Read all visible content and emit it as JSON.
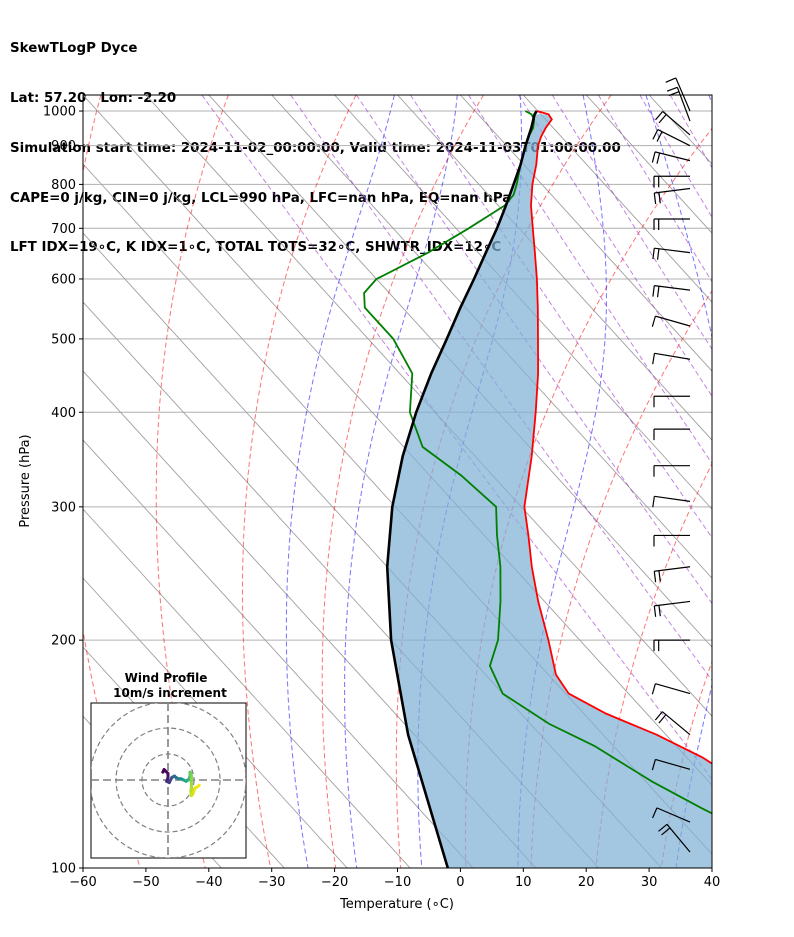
{
  "header": {
    "lines": [
      "SkewTLogP Dyce",
      "Lat: 57.20   Lon: -2.20",
      "Simulation start time: 2024-11-02_00:00:00, Valid time: 2024-11-03T01:00:00.00",
      "CAPE=0 j/kg, CIN=0 j/kg, LCL=990 hPa, LFC=nan hPa, EQ=nan hPa",
      "LFT IDX=19∘C, K IDX=1∘C, TOTAL TOTS=32∘C, SHWTR_IDX=12∘C"
    ]
  },
  "hodograph": {
    "title_line1": "Wind Profile",
    "title_line2": "10m/s increment",
    "rings": [
      10,
      20,
      30
    ],
    "trace": [
      [
        -6,
        3
      ],
      [
        -5.5,
        4
      ],
      [
        -5,
        3.5
      ],
      [
        -4,
        2.5
      ],
      [
        -4,
        1
      ],
      [
        -4.5,
        -0.5
      ],
      [
        -3.5,
        -1
      ],
      [
        -3,
        0
      ],
      [
        -2.5,
        1
      ],
      [
        -1.5,
        1.5
      ],
      [
        -1,
        1
      ],
      [
        0,
        0.5
      ],
      [
        1,
        0.5
      ],
      [
        2,
        0
      ],
      [
        3,
        -0.5
      ],
      [
        3.5,
        0
      ],
      [
        4,
        0
      ],
      [
        4.3,
        1
      ],
      [
        4.5,
        2
      ],
      [
        4.5,
        3
      ],
      [
        4.8,
        2.5
      ],
      [
        5,
        1.5
      ],
      [
        5,
        0
      ],
      [
        5,
        -1.5
      ],
      [
        5,
        -3
      ],
      [
        4.8,
        -4
      ],
      [
        4.8,
        -5
      ],
      [
        5,
        -6
      ],
      [
        5.5,
        -5.5
      ],
      [
        6,
        -4
      ],
      [
        6.5,
        -3
      ],
      [
        7.5,
        -2.5
      ],
      [
        8,
        -2
      ]
    ],
    "colors": [
      "#440154",
      "#440154",
      "#46085c",
      "#471063",
      "#48186a",
      "#472d7b",
      "#443983",
      "#3e4a89",
      "#37598c",
      "#31688e",
      "#2c728e",
      "#26828e",
      "#21918c",
      "#1fa188",
      "#22a884",
      "#2ab07f",
      "#35b779",
      "#44bf70",
      "#52c569",
      "#5ec962",
      "#70cf57",
      "#84d44b",
      "#90d743",
      "#9fda3a",
      "#aadc32",
      "#b5de2b",
      "#c0df25",
      "#cde11d",
      "#d8e219",
      "#e2e418",
      "#ece51b",
      "#f4e61e",
      "#fde725"
    ]
  },
  "chart_data": {
    "type": "line",
    "chart": "skewT-logP",
    "xlabel": "Temperature (∘C)",
    "ylabel": "Pressure (hPa)",
    "xlim": [
      -60,
      40
    ],
    "ylim": [
      1050,
      100
    ],
    "y_scale": "log",
    "grid": true,
    "xticks": [
      -60,
      -50,
      -40,
      -30,
      -20,
      -10,
      0,
      10,
      20,
      30,
      40
    ],
    "xtick_labels": [
      "−60",
      "−50",
      "−40",
      "−30",
      "−20",
      "−10",
      "0",
      "10",
      "20",
      "30",
      "40"
    ],
    "yticks": [
      100,
      200,
      300,
      400,
      500,
      600,
      700,
      800,
      900,
      1000
    ],
    "ytick_labels": [
      "100",
      "200",
      "300",
      "400",
      "500",
      "600",
      "700",
      "800",
      "900",
      "1000"
    ],
    "series": [
      {
        "role": "temperature",
        "color": "#ff0000",
        "p": [
          1000,
          990,
          975,
          950,
          925,
          900,
          850,
          800,
          750,
          700,
          650,
          600,
          550,
          500,
          450,
          400,
          350,
          300,
          275,
          250,
          225,
          200,
          180,
          170,
          160,
          150,
          140,
          130,
          120,
          110,
          100
        ],
        "t": [
          9.8,
          11.2,
          11.0,
          8.8,
          6.8,
          5.0,
          2.0,
          -1.5,
          -4.8,
          -7.8,
          -11.0,
          -14.5,
          -18.5,
          -23.0,
          -28.0,
          -34.0,
          -41.0,
          -49.5,
          -53.0,
          -57.0,
          -61.0,
          -65.0,
          -68.8,
          -69.5,
          -66.5,
          -61.5,
          -57.5,
          -55.0,
          -51.5,
          -49.0,
          -47.5
        ]
      },
      {
        "role": "dewpoint",
        "color": "#008000",
        "p": [
          1000,
          990,
          975,
          950,
          925,
          900,
          850,
          800,
          775,
          750,
          700,
          650,
          600,
          575,
          550,
          500,
          450,
          400,
          360,
          330,
          300,
          275,
          250,
          225,
          200,
          185,
          170,
          155,
          145,
          130,
          120,
          110,
          100
        ],
        "t": [
          8.0,
          8.5,
          8.2,
          6.8,
          4.8,
          3.0,
          -0.5,
          -4.0,
          -6.0,
          -9.0,
          -18.0,
          -28.0,
          -40.0,
          -44.0,
          -46.0,
          -46.0,
          -48.0,
          -54.0,
          -57.0,
          -55.0,
          -54.0,
          -58.0,
          -62.0,
          -67.0,
          -73.0,
          -78.0,
          -80.0,
          -77.0,
          -73.0,
          -69.0,
          -65.0,
          -60.0,
          -56.0
        ]
      },
      {
        "role": "parcel",
        "color": "#000000",
        "p": [
          1000,
          990,
          950,
          900,
          850,
          800,
          750,
          700,
          650,
          600,
          550,
          500,
          450,
          400,
          350,
          300,
          250,
          200,
          150,
          100
        ],
        "t": [
          9.8,
          9.0,
          6.5,
          3.0,
          -0.5,
          -4.5,
          -8.8,
          -13.5,
          -18.8,
          -24.5,
          -30.8,
          -37.5,
          -45.0,
          -53.0,
          -61.5,
          -70.5,
          -80.0,
          -90.0,
          -101.0,
          -114.0
        ]
      }
    ],
    "dry_adiabats_K": [
      213,
      233,
      253,
      273,
      293,
      313,
      333,
      353,
      373,
      393,
      413,
      433,
      453,
      473,
      493,
      513,
      533
    ],
    "moist_adiabats_C": [
      -10,
      0,
      10,
      20,
      30,
      40
    ],
    "mixing_ratio_lines": [
      0.0001,
      0.0004,
      0.001,
      0.002,
      0.004,
      0.007,
      0.01,
      0.016,
      0.024,
      0.032
    ],
    "wind_barbs": [
      {
        "p": 1000,
        "u": 3,
        "v": -7
      },
      {
        "p": 970,
        "u": 3,
        "v": -8
      },
      {
        "p": 930,
        "u": 7,
        "v": -6
      },
      {
        "p": 900,
        "u": 8,
        "v": -4
      },
      {
        "p": 860,
        "u": 8,
        "v": -2
      },
      {
        "p": 820,
        "u": 8,
        "v": 0
      },
      {
        "p": 790,
        "u": 8,
        "v": 1
      },
      {
        "p": 720,
        "u": 8,
        "v": 0
      },
      {
        "p": 650,
        "u": 8,
        "v": -1
      },
      {
        "p": 580,
        "u": 8,
        "v": -1
      },
      {
        "p": 520,
        "u": 7,
        "v": -2
      },
      {
        "p": 470,
        "u": 6,
        "v": -1
      },
      {
        "p": 420,
        "u": 6,
        "v": 0
      },
      {
        "p": 380,
        "u": 7,
        "v": 0
      },
      {
        "p": 340,
        "u": 7,
        "v": 0
      },
      {
        "p": 305,
        "u": 7,
        "v": -1
      },
      {
        "p": 275,
        "u": 7,
        "v": 0
      },
      {
        "p": 250,
        "u": 8,
        "v": 1
      },
      {
        "p": 225,
        "u": 8,
        "v": 1
      },
      {
        "p": 200,
        "u": 8,
        "v": 0
      },
      {
        "p": 170,
        "u": 7,
        "v": -2
      },
      {
        "p": 150,
        "u": 6,
        "v": -5
      },
      {
        "p": 135,
        "u": 7,
        "v": -2
      },
      {
        "p": 115,
        "u": 7,
        "v": -3
      },
      {
        "p": 105,
        "u": 5,
        "v": -6
      }
    ]
  }
}
